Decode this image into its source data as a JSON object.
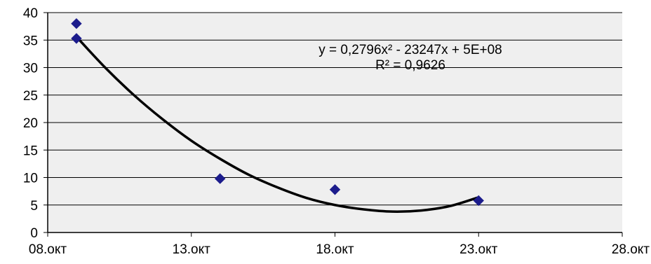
{
  "chart_data": {
    "type": "scatter",
    "x_ticks": [
      "08.окт",
      "13.окт",
      "18.окт",
      "23.окт",
      "28.окт"
    ],
    "y_ticks": [
      "0",
      "5",
      "10",
      "15",
      "20",
      "25",
      "30",
      "35",
      "40"
    ],
    "xlim": [
      "08.окт",
      "28.окт"
    ],
    "ylim": [
      0,
      40
    ],
    "grid": "horizontal",
    "legend": "none",
    "series": [
      {
        "points": [
          {
            "x": "09.окт",
            "y": 38
          },
          {
            "x": "09.окт",
            "y": 35.3
          },
          {
            "x": "14.окт",
            "y": 9.8
          },
          {
            "x": "18.окт",
            "y": 7.8
          },
          {
            "x": "23.окт",
            "y": 5.8
          }
        ],
        "color": "#1c1c8c"
      }
    ],
    "trendline": {
      "type": "polynomial",
      "order": 2,
      "color": "#000000",
      "points": [
        {
          "x": "09.окт",
          "y": 35.6
        },
        {
          "x": "10.окт",
          "y": 30.0
        },
        {
          "x": "11.окт",
          "y": 25.0
        },
        {
          "x": "12.окт",
          "y": 20.6
        },
        {
          "x": "13.окт",
          "y": 16.7
        },
        {
          "x": "14.окт",
          "y": 13.4
        },
        {
          "x": "15.окт",
          "y": 10.5
        },
        {
          "x": "16.окт",
          "y": 8.2
        },
        {
          "x": "17.окт",
          "y": 6.3
        },
        {
          "x": "18.окт",
          "y": 5.0
        },
        {
          "x": "19.окт",
          "y": 4.2
        },
        {
          "x": "20.окт",
          "y": 3.8
        },
        {
          "x": "21.окт",
          "y": 4.0
        },
        {
          "x": "22.окт",
          "y": 4.8
        },
        {
          "x": "23.окт",
          "y": 6.4
        }
      ]
    },
    "annotations": [
      "y = 0,2796x² - 23247x + 5E+08",
      "R² = 0,9626"
    ],
    "colors": {
      "plot_background": "#efefef",
      "gridline": "#000000",
      "axis": "#000000"
    }
  }
}
